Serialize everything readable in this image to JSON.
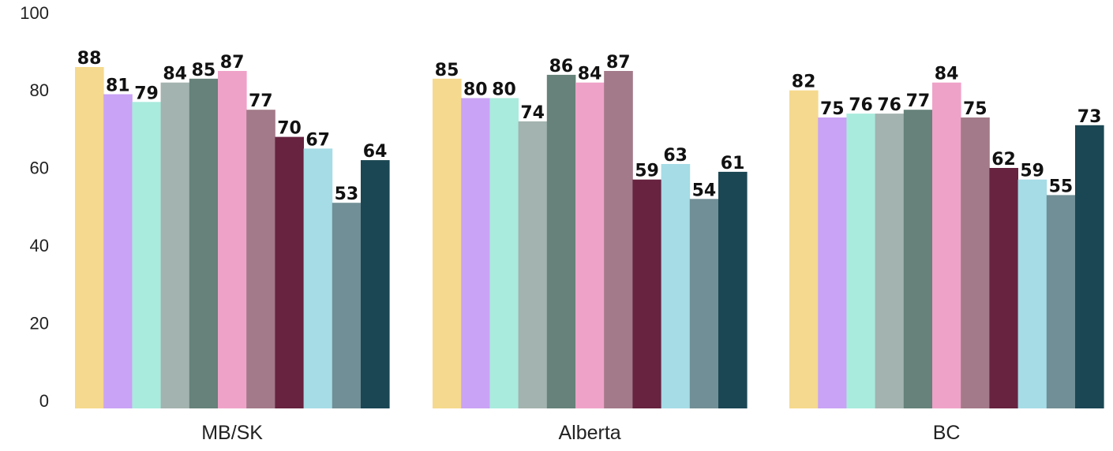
{
  "chart_data": {
    "type": "bar",
    "title": "",
    "xlabel": "",
    "ylabel": "",
    "ylim": [
      0,
      100
    ],
    "yticks": [
      0,
      20,
      40,
      60,
      80,
      100
    ],
    "grid": false,
    "categories": [
      "MB/SK",
      "Alberta",
      "BC"
    ],
    "series": [
      {
        "color": "#F5D98E",
        "values": [
          88,
          85,
          82
        ]
      },
      {
        "color": "#C9A3F5",
        "values": [
          81,
          80,
          75
        ]
      },
      {
        "color": "#A9EBDD",
        "values": [
          79,
          80,
          76
        ]
      },
      {
        "color": "#A3B3AF",
        "values": [
          84,
          74,
          76
        ]
      },
      {
        "color": "#66827A",
        "values": [
          85,
          86,
          77
        ]
      },
      {
        "color": "#EFA2C8",
        "values": [
          87,
          84,
          84
        ]
      },
      {
        "color": "#A37A89",
        "values": [
          77,
          87,
          75
        ]
      },
      {
        "color": "#672340",
        "values": [
          70,
          59,
          62
        ]
      },
      {
        "color": "#A5DCE6",
        "values": [
          67,
          63,
          59
        ]
      },
      {
        "color": "#718F96",
        "values": [
          53,
          54,
          55
        ]
      },
      {
        "color": "#1B4754",
        "values": [
          64,
          61,
          73
        ]
      }
    ]
  }
}
